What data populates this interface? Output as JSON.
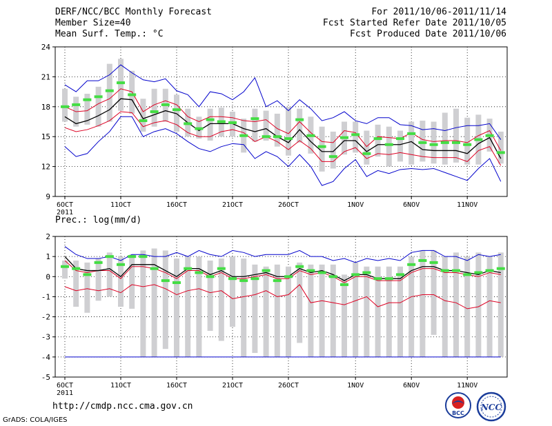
{
  "header": {
    "title": "DERF/NCC/BCC Monthly Forecast",
    "member_size": "Member Size=40",
    "variable": "Mean Surf. Temp.: °C",
    "forecast_for": "For 2011/10/06-2011/11/14",
    "fcst_started": "Fcst Started Refer Date 2011/10/05",
    "fcst_produced": "Fcst Produced Date 2011/10/06"
  },
  "footer": {
    "url": "http://cmdp.ncc.cma.gov.cn",
    "grads_credit": "GrADS: COLA/IGES",
    "logo_bcc_label": "BCC",
    "logo_ncc_label": "NCC"
  },
  "colors": {
    "envelope_line": "#0000cc",
    "percentile_line": "#dd0022",
    "mean_line": "#000000",
    "box": "#cfcfd2",
    "median_marker": "#44dd44",
    "grid": "#000000"
  },
  "chart_data": [
    {
      "type": "box",
      "title": "Mean Surf. Temp.: °C",
      "categories": [
        "6OCT",
        "7OCT",
        "8OCT",
        "9OCT",
        "10OCT",
        "11OCT",
        "12OCT",
        "13OCT",
        "14OCT",
        "15OCT",
        "16OCT",
        "17OCT",
        "18OCT",
        "19OCT",
        "20OCT",
        "21OCT",
        "22OCT",
        "23OCT",
        "24OCT",
        "25OCT",
        "26OCT",
        "27OCT",
        "28OCT",
        "29OCT",
        "30OCT",
        "31OCT",
        "1NOV",
        "2NOV",
        "3NOV",
        "4NOV",
        "5NOV",
        "6NOV",
        "7NOV",
        "8NOV",
        "9NOV",
        "10NOV",
        "11NOV",
        "12NOV",
        "13NOV",
        "14NOV"
      ],
      "x_tick_labels": [
        {
          "index": 0,
          "label": "6OCT"
        },
        {
          "index": 5,
          "label": "11OCT"
        },
        {
          "index": 10,
          "label": "16OCT"
        },
        {
          "index": 15,
          "label": "21OCT"
        },
        {
          "index": 20,
          "label": "26OCT"
        },
        {
          "index": 26,
          "label": "1NOV"
        },
        {
          "index": 31,
          "label": "6NOV"
        },
        {
          "index": 36,
          "label": "11NOV"
        }
      ],
      "year_label": "2011",
      "ylim": [
        9,
        24
      ],
      "yticks": [
        9,
        12,
        15,
        18,
        21,
        24
      ],
      "series": [
        {
          "name": "max",
          "values": [
            14.0,
            13.0,
            13.3,
            14.5,
            15.5,
            17.0,
            17.0,
            15.0,
            15.5,
            15.8,
            15.3,
            14.5,
            13.8,
            13.5,
            14.0,
            14.3,
            14.2,
            12.8,
            13.5,
            13.0,
            12.0,
            13.2,
            12.0,
            10.1,
            10.5,
            11.8,
            12.7,
            11.0,
            11.6,
            11.3,
            11.7,
            11.8,
            11.7,
            11.8,
            11.4,
            11.0,
            10.6,
            11.8,
            12.8,
            10.5
          ]
        },
        {
          "name": "p10",
          "values": [
            15.9,
            15.5,
            15.7,
            16.1,
            16.6,
            17.5,
            17.4,
            16.0,
            16.4,
            16.6,
            16.2,
            15.4,
            15.0,
            15.0,
            15.5,
            15.7,
            15.4,
            14.5,
            15.0,
            14.5,
            13.7,
            14.6,
            13.8,
            12.5,
            12.5,
            13.5,
            13.9,
            12.8,
            13.3,
            13.2,
            13.4,
            13.2,
            13.0,
            12.9,
            12.9,
            12.9,
            12.5,
            13.6,
            14.0,
            12.1
          ]
        },
        {
          "name": "mean",
          "values": [
            17.0,
            16.3,
            16.6,
            17.1,
            17.7,
            18.8,
            18.7,
            16.8,
            17.2,
            17.6,
            17.3,
            16.4,
            15.6,
            16.3,
            16.3,
            16.3,
            15.8,
            15.5,
            15.8,
            15.0,
            14.4,
            15.7,
            14.5,
            13.5,
            13.5,
            14.6,
            14.6,
            13.5,
            14.2,
            14.2,
            14.2,
            14.5,
            13.7,
            13.6,
            13.6,
            13.6,
            13.3,
            14.3,
            14.9,
            12.8
          ]
        },
        {
          "name": "p90",
          "values": [
            18.0,
            17.5,
            17.6,
            18.3,
            18.8,
            19.8,
            19.5,
            17.5,
            18.2,
            18.6,
            18.2,
            17.0,
            16.5,
            17.0,
            17.0,
            16.9,
            16.6,
            16.5,
            16.7,
            15.8,
            15.3,
            16.5,
            15.4,
            14.5,
            14.4,
            15.6,
            15.4,
            14.0,
            15.0,
            14.9,
            14.8,
            15.4,
            14.7,
            14.5,
            14.6,
            14.6,
            14.4,
            15.1,
            15.6,
            13.6
          ]
        },
        {
          "name": "min",
          "values": [
            20.2,
            19.5,
            20.6,
            20.6,
            21.2,
            22.2,
            21.4,
            20.7,
            20.5,
            20.8,
            19.6,
            19.2,
            18.0,
            19.5,
            19.3,
            18.7,
            19.5,
            20.9,
            18.0,
            18.6,
            17.6,
            18.7,
            17.8,
            16.6,
            16.9,
            17.5,
            16.6,
            16.3,
            16.9,
            16.9,
            16.2,
            16.1,
            15.7,
            15.8,
            15.6,
            15.9,
            16.1,
            16.1,
            16.3,
            14.7
          ]
        },
        {
          "name": "median",
          "values": [
            18.0,
            18.2,
            18.7,
            19.0,
            19.6,
            20.4,
            19.2,
            16.6,
            17.5,
            18.2,
            17.7,
            16.3,
            15.8,
            16.7,
            16.5,
            16.4,
            15.1,
            16.8,
            15.0,
            15.0,
            14.8,
            16.7,
            15.1,
            14.0,
            13.0,
            14.9,
            15.2,
            13.3,
            14.8,
            14.2,
            14.8,
            15.3,
            14.4,
            14.2,
            14.4,
            14.4,
            14.2,
            14.7,
            15.1,
            13.4
          ]
        },
        {
          "name": "box_low",
          "values": [
            16.5,
            16.0,
            16.2,
            16.0,
            16.5,
            17.6,
            17.3,
            15.5,
            16.0,
            16.5,
            15.5,
            15.0,
            14.8,
            14.6,
            15.0,
            15.0,
            13.4,
            14.5,
            14.6,
            14.0,
            13.1,
            14.4,
            13.3,
            11.5,
            11.8,
            13.2,
            13.4,
            12.2,
            13.0,
            12.0,
            12.5,
            12.2,
            12.5,
            12.3,
            12.2,
            12.4,
            12.2,
            12.2,
            13.5,
            12.3
          ]
        },
        {
          "name": "box_high",
          "values": [
            19.8,
            19.0,
            19.3,
            20.0,
            22.3,
            22.8,
            21.6,
            18.8,
            19.8,
            19.8,
            19.2,
            17.8,
            17.0,
            17.8,
            17.9,
            17.5,
            16.8,
            17.8,
            17.6,
            17.3,
            18.0,
            17.8,
            17.0,
            16.0,
            15.5,
            16.5,
            16.5,
            15.6,
            16.2,
            16.0,
            15.6,
            16.5,
            16.6,
            16.5,
            17.4,
            17.8,
            16.9,
            17.2,
            16.8,
            15.5
          ]
        }
      ]
    },
    {
      "type": "box",
      "title": "Prec.: log(mm/d)",
      "categories": [
        "6OCT",
        "7OCT",
        "8OCT",
        "9OCT",
        "10OCT",
        "11OCT",
        "12OCT",
        "13OCT",
        "14OCT",
        "15OCT",
        "16OCT",
        "17OCT",
        "18OCT",
        "19OCT",
        "20OCT",
        "21OCT",
        "22OCT",
        "23OCT",
        "24OCT",
        "25OCT",
        "26OCT",
        "27OCT",
        "28OCT",
        "29OCT",
        "30OCT",
        "31OCT",
        "1NOV",
        "2NOV",
        "3NOV",
        "4NOV",
        "5NOV",
        "6NOV",
        "7NOV",
        "8NOV",
        "9NOV",
        "10NOV",
        "11NOV",
        "12NOV",
        "13NOV",
        "14NOV"
      ],
      "x_tick_labels": [
        {
          "index": 0,
          "label": "6OCT"
        },
        {
          "index": 5,
          "label": "11OCT"
        },
        {
          "index": 10,
          "label": "16OCT"
        },
        {
          "index": 15,
          "label": "21OCT"
        },
        {
          "index": 20,
          "label": "26OCT"
        },
        {
          "index": 26,
          "label": "1NOV"
        },
        {
          "index": 31,
          "label": "6NOV"
        },
        {
          "index": 36,
          "label": "11NOV"
        }
      ],
      "year_label": "2011",
      "ylim": [
        -5,
        2
      ],
      "yticks": [
        -5,
        -4,
        -3,
        -2,
        -1,
        0,
        1,
        2
      ],
      "series": [
        {
          "name": "max",
          "values": [
            1.5,
            1.1,
            0.9,
            0.9,
            1.0,
            0.8,
            1.1,
            1.1,
            1.0,
            1.0,
            1.2,
            1.0,
            1.3,
            1.1,
            1.0,
            1.3,
            1.2,
            1.0,
            1.1,
            1.1,
            1.1,
            1.3,
            1.0,
            1.0,
            0.8,
            0.9,
            0.7,
            0.9,
            0.8,
            0.9,
            0.8,
            1.2,
            1.3,
            1.3,
            1.0,
            1.0,
            0.8,
            1.1,
            1.0,
            1.1
          ]
        },
        {
          "name": "mean",
          "values": [
            1.0,
            0.4,
            0.3,
            0.3,
            0.4,
            0.0,
            0.6,
            0.6,
            0.6,
            0.3,
            0.0,
            0.4,
            0.4,
            0.1,
            0.3,
            0.0,
            0.0,
            0.1,
            0.2,
            0.0,
            0.0,
            0.4,
            0.2,
            0.3,
            0.1,
            -0.2,
            0.1,
            0.1,
            -0.1,
            -0.1,
            -0.1,
            0.3,
            0.5,
            0.5,
            0.3,
            0.3,
            0.2,
            0.1,
            0.3,
            0.2
          ]
        },
        {
          "name": "p90",
          "values": [
            0.8,
            0.3,
            0.2,
            0.3,
            0.3,
            -0.1,
            0.5,
            0.5,
            0.4,
            0.2,
            -0.1,
            0.3,
            0.3,
            0.0,
            0.2,
            -0.1,
            -0.1,
            0.0,
            0.1,
            -0.1,
            -0.1,
            0.3,
            0.1,
            0.2,
            0.0,
            -0.3,
            0.0,
            0.0,
            -0.2,
            -0.2,
            -0.2,
            0.2,
            0.4,
            0.4,
            0.2,
            0.2,
            0.1,
            0.0,
            0.2,
            0.1
          ]
        },
        {
          "name": "p10",
          "values": [
            -0.5,
            -0.7,
            -0.6,
            -0.7,
            -0.6,
            -0.8,
            -0.4,
            -0.5,
            -0.4,
            -0.6,
            -0.9,
            -0.7,
            -0.6,
            -0.8,
            -0.7,
            -1.1,
            -1.0,
            -0.9,
            -0.7,
            -1.0,
            -0.9,
            -0.4,
            -1.3,
            -1.2,
            -1.3,
            -1.4,
            -1.2,
            -1.0,
            -1.5,
            -1.3,
            -1.3,
            -1.0,
            -0.9,
            -0.9,
            -1.2,
            -1.3,
            -1.6,
            -1.5,
            -1.2,
            -1.3
          ]
        },
        {
          "name": "min",
          "values": [
            -4.0,
            -4.0,
            -4.0,
            -4.0,
            -4.0,
            -4.0,
            -4.0,
            -4.0,
            -4.0,
            -4.0,
            -4.0,
            -4.0,
            -4.0,
            -4.0,
            -4.0,
            -4.0,
            -4.0,
            -4.0,
            -4.0,
            -4.0,
            -4.0,
            -4.0,
            -4.0,
            -4.0,
            -4.0,
            -4.0,
            -4.0,
            -4.0,
            -4.0,
            -4.0,
            -4.0,
            -4.0,
            -4.0,
            -4.0,
            -4.0,
            -4.0,
            -4.0,
            -4.0,
            -4.0,
            -4.0
          ]
        },
        {
          "name": "median",
          "values": [
            0.5,
            0.4,
            0.1,
            0.7,
            1.0,
            0.6,
            1.0,
            1.0,
            0.4,
            -0.2,
            -0.3,
            0.4,
            0.2,
            0.0,
            0.4,
            -0.1,
            -0.2,
            -0.1,
            0.3,
            -0.2,
            0.0,
            0.5,
            0.3,
            0.2,
            0.0,
            -0.4,
            0.1,
            0.2,
            -0.1,
            -0.1,
            0.1,
            0.6,
            0.8,
            0.7,
            0.3,
            0.3,
            0.1,
            0.2,
            0.3,
            0.4
          ]
        },
        {
          "name": "box_low",
          "values": [
            -0.1,
            -1.5,
            -1.8,
            -1.2,
            -1.0,
            -1.5,
            -1.6,
            -4.0,
            -4.0,
            -3.6,
            -4.0,
            -4.0,
            -4.0,
            -2.7,
            -3.2,
            -2.5,
            -4.0,
            -3.8,
            -4.0,
            -4.0,
            -4.0,
            -3.3,
            -4.0,
            -4.0,
            -4.0,
            -4.0,
            -4.0,
            -4.0,
            -4.0,
            -4.0,
            -4.0,
            -4.0,
            -4.0,
            -2.9,
            -4.0,
            -4.0,
            -4.0,
            -4.0,
            -4.0,
            -4.0
          ]
        },
        {
          "name": "box_high",
          "values": [
            0.8,
            0.8,
            0.7,
            0.9,
            1.2,
            1.0,
            1.1,
            1.3,
            1.4,
            1.3,
            0.9,
            1.0,
            1.0,
            0.8,
            0.9,
            1.0,
            0.9,
            0.6,
            0.5,
            0.6,
            0.5,
            0.7,
            0.6,
            0.6,
            0.6,
            0.1,
            0.7,
            0.5,
            0.5,
            0.5,
            0.5,
            1.0,
            1.3,
            1.3,
            1.0,
            1.2,
            1.0,
            1.2,
            1.0,
            1.2
          ]
        }
      ]
    }
  ]
}
